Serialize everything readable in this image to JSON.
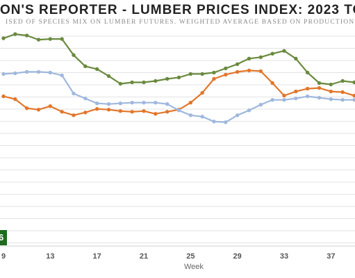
{
  "title": "ON'S REPORTER - LUMBER PRICES INDEX: 2023 TO",
  "subtitle": "ISED OF SPECIES MIX ON LUMBER FUTURES. WEIGHTED AVERAGE BASED ON PRODUCTION V",
  "badge": "6",
  "colors": {
    "green": "#6a8a3e",
    "orange": "#e2762a",
    "blue": "#9fb8dd",
    "grid": "#e3e3e3"
  },
  "chart_data": {
    "type": "line",
    "xlabel": "Week",
    "ylabel": "",
    "xlim": [
      9,
      39
    ],
    "ylim": [
      0,
      310
    ],
    "grid": true,
    "x_ticks": [
      9,
      13,
      17,
      21,
      25,
      29,
      33,
      37
    ],
    "x": [
      9,
      10,
      11,
      12,
      13,
      14,
      15,
      16,
      17,
      18,
      19,
      20,
      21,
      22,
      23,
      24,
      25,
      26,
      27,
      28,
      29,
      30,
      31,
      32,
      33,
      34,
      35,
      36,
      37,
      38,
      39
    ],
    "series": [
      {
        "color": "green",
        "values": [
          295,
          301,
          299,
          293,
          294,
          294,
          271,
          255,
          251,
          241,
          230,
          232,
          232,
          234,
          237,
          239,
          244,
          244,
          246,
          252,
          258,
          266,
          268,
          273,
          277,
          266,
          246,
          231,
          229,
          234,
          232
        ]
      },
      {
        "color": "orange",
        "values": [
          212,
          208,
          195,
          193,
          198,
          190,
          185,
          189,
          194,
          193,
          191,
          190,
          191,
          187,
          190,
          193,
          203,
          217,
          237,
          243,
          247,
          249,
          248,
          231,
          213,
          219,
          223,
          224,
          219,
          218,
          213
        ]
      },
      {
        "color": "blue",
        "values": [
          244,
          245,
          247,
          247,
          246,
          242,
          216,
          209,
          202,
          201,
          202,
          203,
          203,
          203,
          201,
          192,
          185,
          183,
          176,
          175,
          185,
          192,
          200,
          207,
          207,
          209,
          212,
          210,
          208,
          207,
          207
        ]
      }
    ]
  },
  "x_axis_title": "Week"
}
